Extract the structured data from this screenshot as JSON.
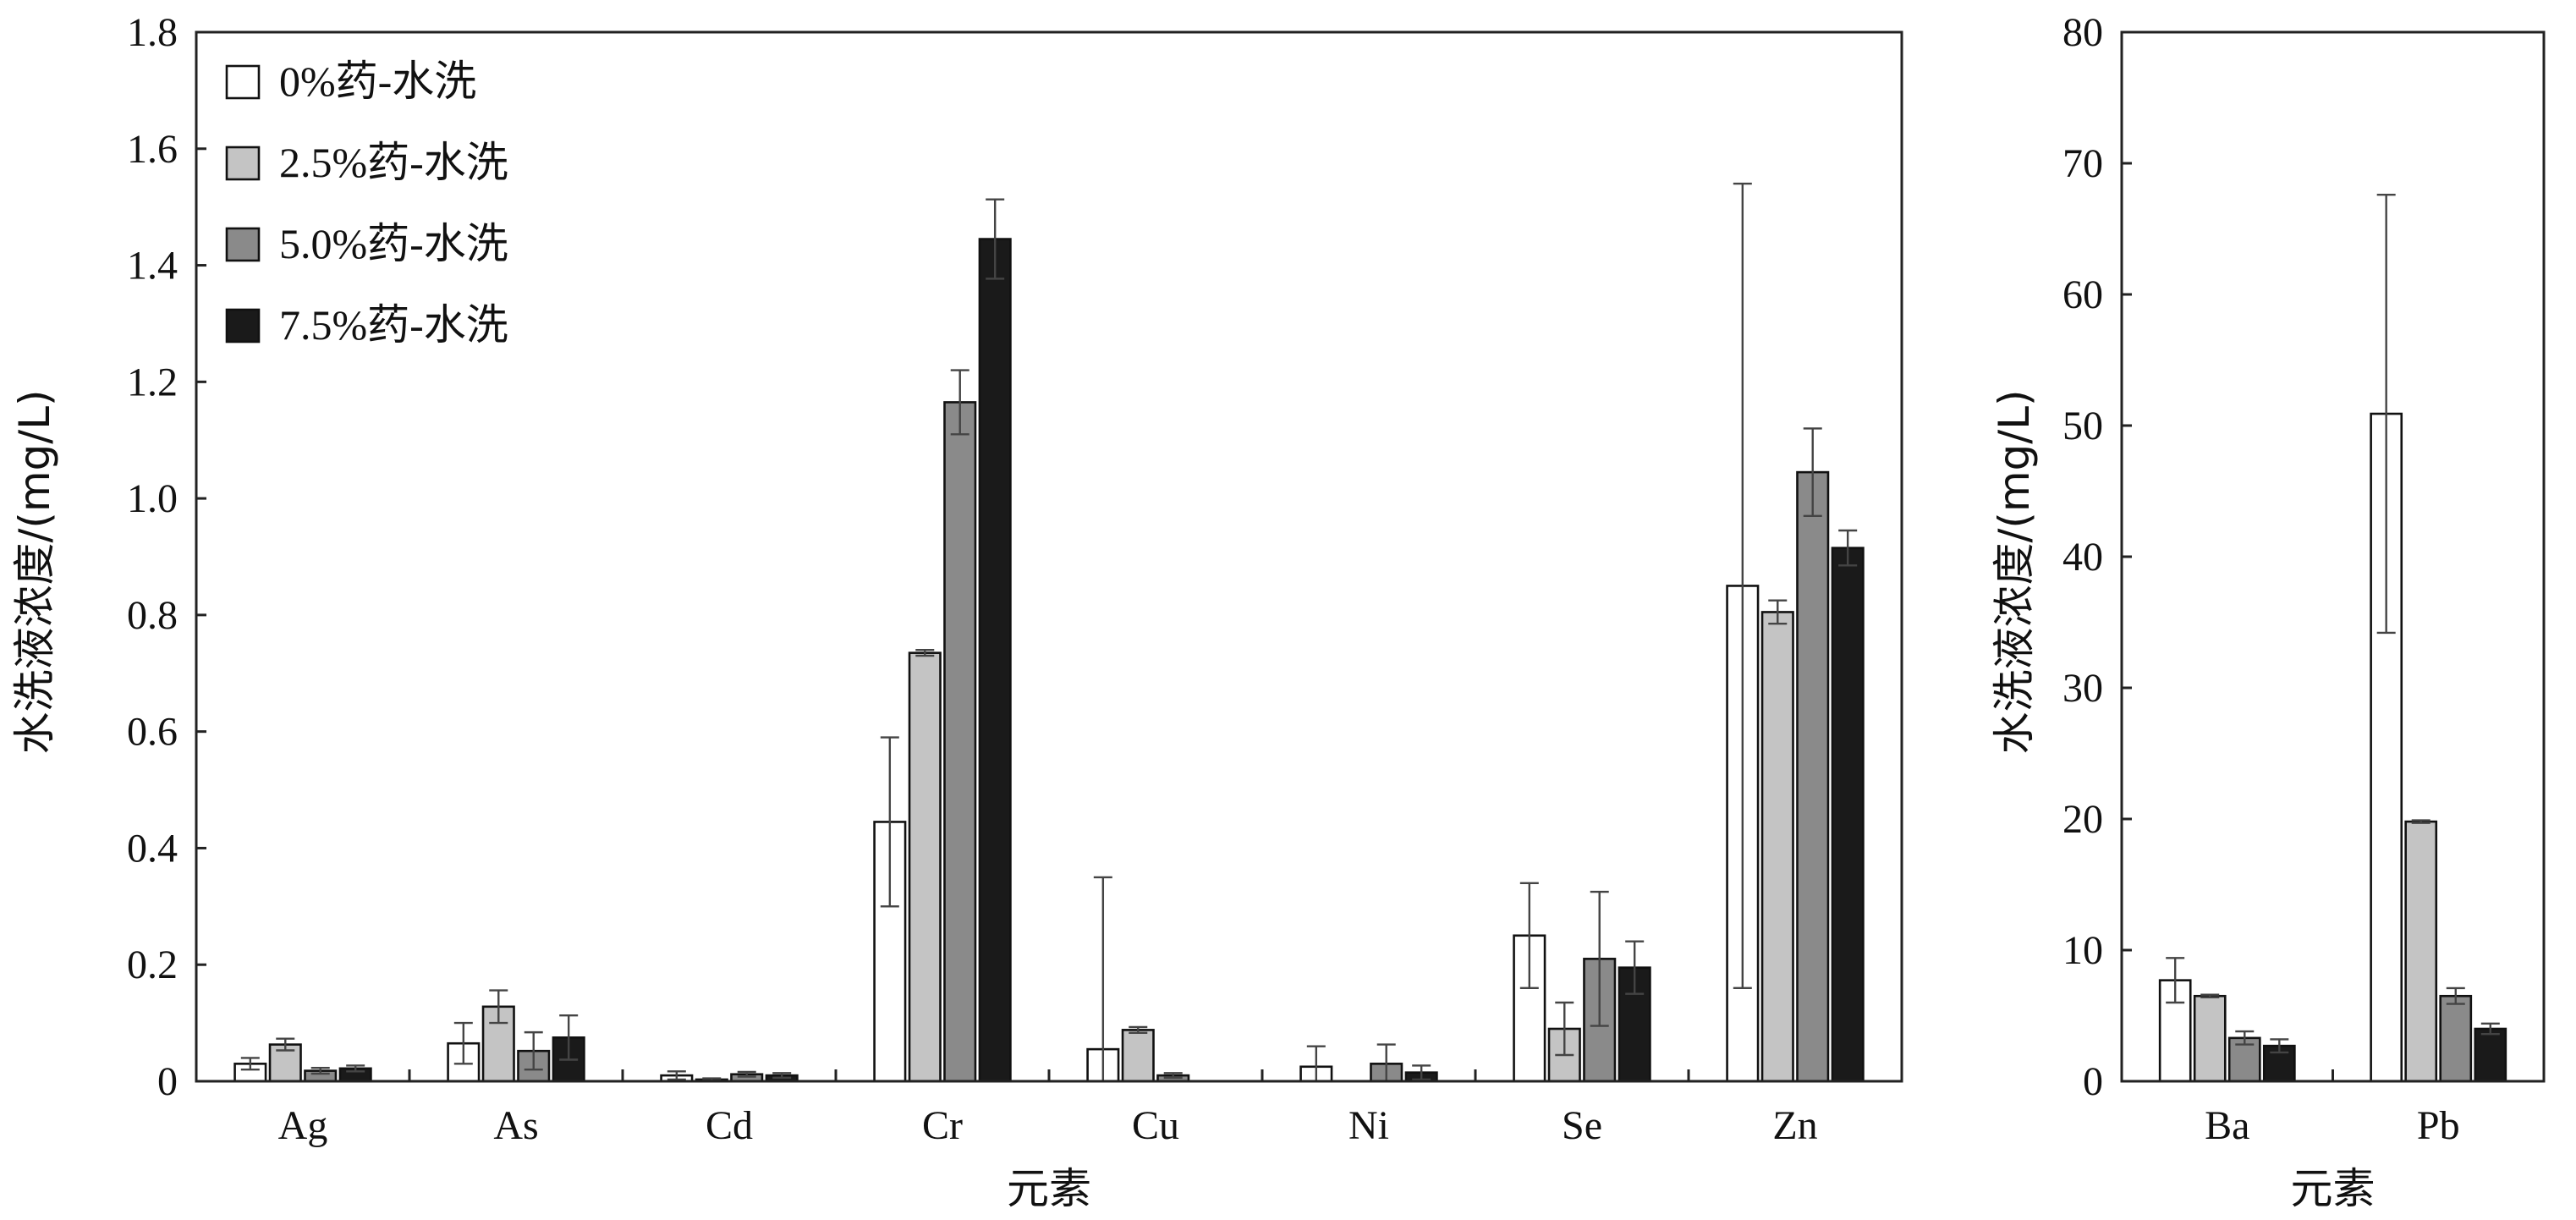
{
  "chart_data": [
    {
      "type": "bar",
      "xlabel": "元素",
      "ylabel": "水洗液浓度/(mg/L)",
      "ylim": [
        0,
        1.8
      ],
      "yticks": [
        "0",
        "0.2",
        "0.4",
        "0.6",
        "0.8",
        "1.0",
        "1.2",
        "1.4",
        "1.6",
        "1.8"
      ],
      "categories": [
        "Ag",
        "As",
        "Cd",
        "Cr",
        "Cu",
        "Ni",
        "Se",
        "Zn"
      ],
      "legend_position": "top-left",
      "error_bars": true,
      "series": [
        {
          "name": "0%药-水洗",
          "color": "#ffffff",
          "values": [
            0.03,
            0.065,
            0.01,
            0.445,
            0.055,
            0.025,
            0.25,
            0.85
          ],
          "errors": [
            0.01,
            0.035,
            0.007,
            0.145,
            0.295,
            0.035,
            0.09,
            0.69
          ]
        },
        {
          "name": "2.5%药-水洗",
          "color": "#c4c4c4",
          "values": [
            0.063,
            0.128,
            0.003,
            0.735,
            0.088,
            0.0,
            0.09,
            0.805
          ],
          "errors": [
            0.01,
            0.028,
            0.002,
            0.005,
            0.005,
            0.0,
            0.045,
            0.02
          ]
        },
        {
          "name": "5.0%药-水洗",
          "color": "#8a8a8a",
          "values": [
            0.018,
            0.052,
            0.012,
            1.165,
            0.01,
            0.03,
            0.21,
            1.045
          ],
          "errors": [
            0.005,
            0.032,
            0.004,
            0.055,
            0.004,
            0.033,
            0.115,
            0.075
          ]
        },
        {
          "name": "7.5%药-水洗",
          "color": "#1a1a1a",
          "values": [
            0.022,
            0.075,
            0.01,
            1.445,
            0.0,
            0.015,
            0.195,
            0.915
          ],
          "errors": [
            0.005,
            0.038,
            0.004,
            0.068,
            0.0,
            0.012,
            0.045,
            0.03
          ]
        }
      ]
    },
    {
      "type": "bar",
      "xlabel": "元素",
      "ylabel": "水洗液浓度/(mg/L)",
      "ylim": [
        0,
        80
      ],
      "yticks": [
        "0",
        "10",
        "20",
        "30",
        "40",
        "50",
        "60",
        "70",
        "80"
      ],
      "categories": [
        "Ba",
        "Pb"
      ],
      "error_bars": true,
      "series": [
        {
          "name": "0%药-水洗",
          "color": "#ffffff",
          "values": [
            7.7,
            50.9
          ],
          "errors": [
            1.7,
            16.7
          ]
        },
        {
          "name": "2.5%药-水洗",
          "color": "#c4c4c4",
          "values": [
            6.5,
            19.8
          ],
          "errors": [
            0.1,
            0.1
          ]
        },
        {
          "name": "5.0%药-水洗",
          "color": "#8a8a8a",
          "values": [
            3.3,
            6.5
          ],
          "errors": [
            0.5,
            0.6
          ]
        },
        {
          "name": "7.5%药-水洗",
          "color": "#1a1a1a",
          "values": [
            2.7,
            4.0
          ],
          "errors": [
            0.5,
            0.4
          ]
        }
      ]
    }
  ]
}
